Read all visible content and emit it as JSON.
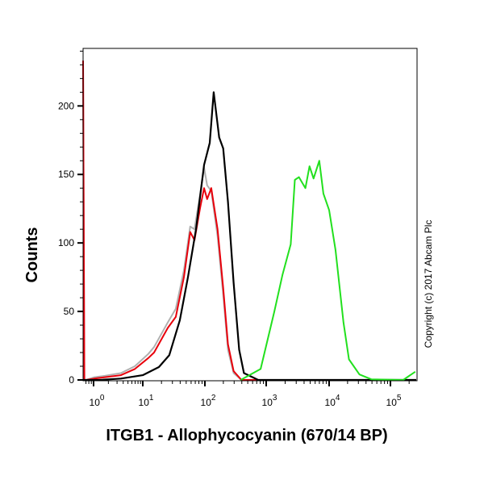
{
  "chart_data": {
    "type": "line",
    "title": "",
    "xlabel": "ITGB1 - Allophycocyanin (670/14 BP)",
    "ylabel": "Counts",
    "x_scale": "log",
    "ylim": [
      0,
      242
    ],
    "xlim": [
      0.6,
      260000
    ],
    "grid": false,
    "y_ticks": [
      {
        "value": 0,
        "label": "0"
      },
      {
        "value": 50,
        "label": "50"
      },
      {
        "value": 100,
        "label": "100"
      },
      {
        "value": 150,
        "label": "150"
      },
      {
        "value": 200,
        "label": "200"
      }
    ],
    "x_ticks": [
      {
        "value": 1,
        "base": "10",
        "exp": "0"
      },
      {
        "value": 10,
        "base": "10",
        "exp": "1"
      },
      {
        "value": 100,
        "base": "10",
        "exp": "2"
      },
      {
        "value": 1000,
        "base": "10",
        "exp": "3"
      },
      {
        "value": 10000,
        "base": "10",
        "exp": "4"
      },
      {
        "value": 100000,
        "base": "10",
        "exp": "5"
      }
    ],
    "series": [
      {
        "color": "#b0b0b0",
        "points": [
          [
            0.6,
            233
          ],
          [
            0.65,
            0
          ],
          [
            0.71,
            0
          ],
          [
            1.04,
            2
          ],
          [
            1.7,
            3
          ],
          [
            3.6,
            5
          ],
          [
            6.9,
            10
          ],
          [
            12.3,
            19
          ],
          [
            15.2,
            24
          ],
          [
            25.3,
            42
          ],
          [
            34,
            52
          ],
          [
            46,
            80
          ],
          [
            58,
            112
          ],
          [
            68,
            110
          ],
          [
            84,
            136
          ],
          [
            97,
            155
          ],
          [
            109,
            142
          ],
          [
            127,
            138
          ],
          [
            161,
            105
          ],
          [
            199,
            62
          ],
          [
            238,
            22
          ],
          [
            294,
            5
          ],
          [
            395,
            0
          ],
          [
            1000,
            0
          ],
          [
            260000,
            0
          ]
        ]
      },
      {
        "color": "#e8000b",
        "points": [
          [
            0.6,
            233
          ],
          [
            0.65,
            0
          ],
          [
            0.71,
            0
          ],
          [
            1.04,
            1
          ],
          [
            1.7,
            2
          ],
          [
            3.6,
            3.5
          ],
          [
            6.9,
            8
          ],
          [
            12.3,
            16
          ],
          [
            15.2,
            20
          ],
          [
            25.3,
            38
          ],
          [
            34,
            46
          ],
          [
            46,
            75
          ],
          [
            58,
            108
          ],
          [
            68,
            102
          ],
          [
            84,
            126
          ],
          [
            97,
            140
          ],
          [
            109,
            132
          ],
          [
            127,
            140
          ],
          [
            161,
            110
          ],
          [
            199,
            67
          ],
          [
            238,
            26
          ],
          [
            294,
            6.5
          ],
          [
            395,
            0
          ],
          [
            1000,
            0
          ],
          [
            260000,
            0
          ]
        ]
      },
      {
        "color": "#000000",
        "points": [
          [
            0.61,
            0
          ],
          [
            1.3,
            0
          ],
          [
            3.6,
            1
          ],
          [
            10,
            3.5
          ],
          [
            18.2,
            9.4
          ],
          [
            26.7,
            18
          ],
          [
            39.5,
            43.5
          ],
          [
            53.3,
            75
          ],
          [
            72,
            110
          ],
          [
            97,
            157
          ],
          [
            120,
            173
          ],
          [
            139,
            210
          ],
          [
            171,
            177
          ],
          [
            199,
            169
          ],
          [
            238,
            130
          ],
          [
            294,
            71
          ],
          [
            362,
            22
          ],
          [
            433,
            5
          ],
          [
            741,
            0
          ],
          [
            260000,
            0
          ]
        ]
      },
      {
        "color": "#22e01e",
        "points": [
          [
            384,
            0
          ],
          [
            811,
            8
          ],
          [
            1349,
            50
          ],
          [
            1820,
            77
          ],
          [
            2455,
            99
          ],
          [
            2851,
            146
          ],
          [
            3311,
            148
          ],
          [
            4200,
            140
          ],
          [
            4875,
            156
          ],
          [
            5660,
            147
          ],
          [
            6980,
            160
          ],
          [
            8110,
            136
          ],
          [
            10000,
            124
          ],
          [
            12700,
            95
          ],
          [
            17140,
            42
          ],
          [
            21100,
            15
          ],
          [
            31200,
            4
          ],
          [
            48800,
            0.5
          ],
          [
            161000,
            0
          ],
          [
            251000,
            6
          ]
        ]
      }
    ]
  },
  "copyright": "Copyright (c) 2017 Abcam Plc"
}
